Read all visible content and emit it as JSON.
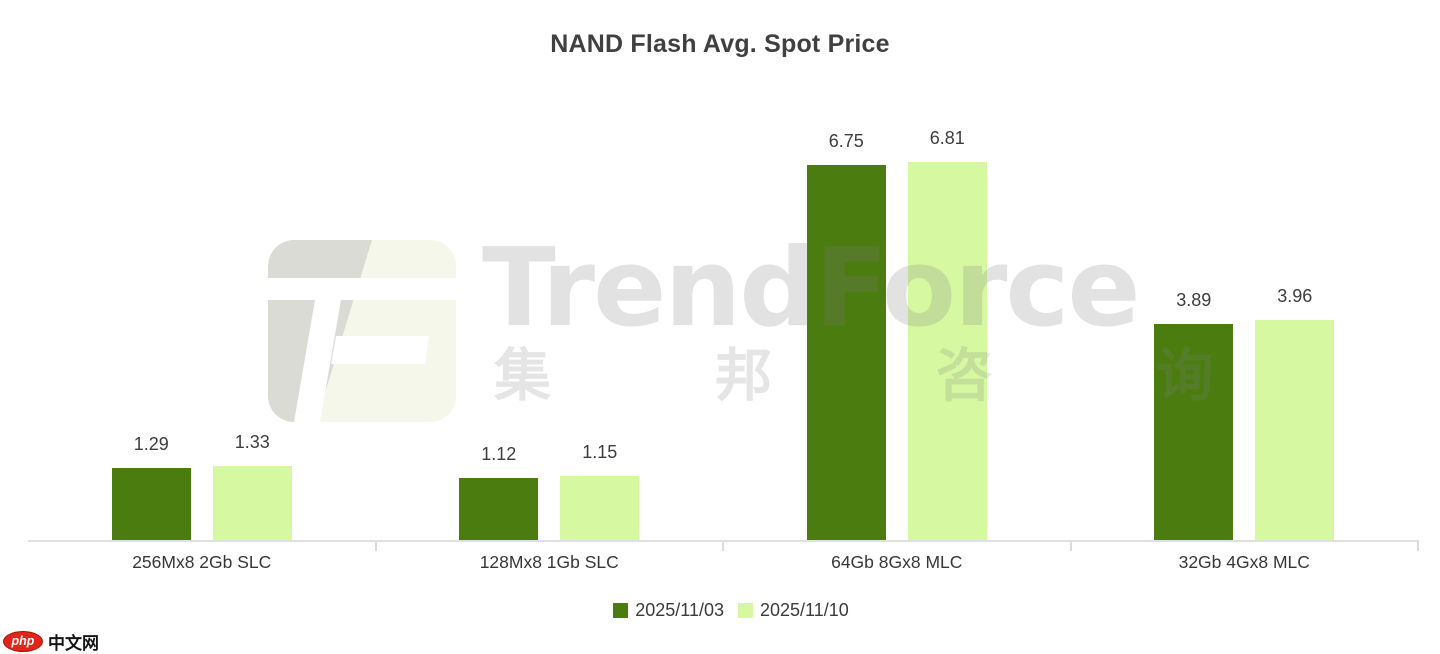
{
  "chart_data": {
    "type": "bar",
    "title": "NAND Flash Avg. Spot Price",
    "xlabel": "",
    "ylabel": "",
    "categories": [
      "256Mx8 2Gb SLC",
      "128Mx8 1Gb SLC",
      "64Gb 8Gx8 MLC",
      "32Gb 4Gx8 MLC"
    ],
    "series": [
      {
        "name": "2025/11/03",
        "color": "#4b7c10",
        "values": [
          1.29,
          1.12,
          6.75,
          3.89
        ]
      },
      {
        "name": "2025/11/10",
        "color": "#d6f8a1",
        "values": [
          1.33,
          1.15,
          6.81,
          3.96
        ]
      }
    ],
    "ylim": [
      0,
      7.5
    ],
    "grid": false,
    "axis_color": "#e0e0e0",
    "value_labels": true,
    "legend_position": "bottom"
  },
  "watermark": {
    "brand": "TrendForce",
    "brand_cn": "集 邦 咨 询",
    "logo": "trendforce-tf-mark"
  },
  "footer_logo": {
    "badge": "php",
    "text": "中文网",
    "badge_color": "#e1251b"
  }
}
